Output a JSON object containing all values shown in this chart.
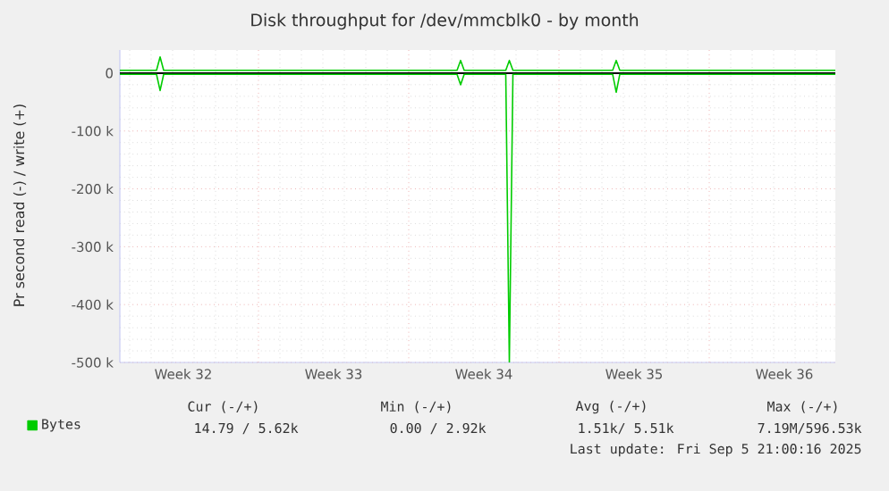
{
  "chart_data": {
    "type": "line",
    "title": "Disk throughput for /dev/mmcblk0 - by month",
    "ylabel": "Pr second read (-) / write (+)",
    "xlim": [
      "2025-08-03T13:00",
      "2025-09-05T21:00"
    ],
    "ylim": [
      -500000,
      40000
    ],
    "xticks": [
      {
        "value": "2025-08-06T12:00",
        "label": "Week 32"
      },
      {
        "value": "2025-08-10",
        "label": null
      },
      {
        "value": "2025-08-13T12:00",
        "label": "Week 33"
      },
      {
        "value": "2025-08-17",
        "label": null
      },
      {
        "value": "2025-08-20T12:00",
        "label": "Week 34"
      },
      {
        "value": "2025-08-24",
        "label": null
      },
      {
        "value": "2025-08-27T12:00",
        "label": "Week 35"
      },
      {
        "value": "2025-08-31",
        "label": null
      },
      {
        "value": "2025-09-03T12:00",
        "label": "Week 36"
      }
    ],
    "yticks": [
      {
        "value": -500000,
        "label": "-500 k"
      },
      {
        "value": -400000,
        "label": "-400 k"
      },
      {
        "value": -300000,
        "label": "-300 k"
      },
      {
        "value": -200000,
        "label": "-200 k"
      },
      {
        "value": -100000,
        "label": "-100 k"
      },
      0
    ],
    "series": [
      {
        "name": "Bytes",
        "color": "#00cc00",
        "x": [
          "2025-08-03T13:00",
          "2025-08-05T06:00",
          "2025-08-05T10:00",
          "2025-08-05T14:00",
          "2025-08-19T06:00",
          "2025-08-19T10:00",
          "2025-08-19T14:00",
          "2025-08-21T12:30",
          "2025-08-21T16:30",
          "2025-08-21T20:30",
          "2025-08-26T12:00",
          "2025-08-26T16:00",
          "2025-08-26T20:00",
          "2025-09-05T21:00"
        ],
        "values": [
          5000,
          5000,
          28000,
          5000,
          5000,
          22000,
          5000,
          5000,
          22000,
          5000,
          5000,
          22000,
          5000,
          5000
        ]
      },
      {
        "color": "#00cc00",
        "x": [
          "2025-08-03T13:00",
          "2025-08-05T06:00",
          "2025-08-05T10:00",
          "2025-08-05T14:00",
          "2025-08-19T06:00",
          "2025-08-19T10:00",
          "2025-08-19T14:00",
          "2025-08-21T12:30",
          "2025-08-21T16:30",
          "2025-08-21T20:30",
          "2025-08-26T12:00",
          "2025-08-26T16:00",
          "2025-08-26T20:00",
          "2025-09-05T21:00"
        ],
        "values": [
          -2000,
          -2000,
          -30000,
          -2000,
          -2000,
          -20000,
          -2000,
          -2000,
          -500000,
          -2000,
          -2000,
          -33000,
          -2000,
          -2000
        ]
      }
    ],
    "ref_lines": [
      {
        "axis": "y",
        "value": 0,
        "color": "#000000"
      }
    ],
    "grid": true,
    "legend": "bottom left",
    "annotations": [
      "Cur (-/+)",
      "Min (-/+)",
      "Avg (-/+)",
      "Max (-/+)",
      "14.79 /  5.62k",
      "0.00 /  2.92k",
      "1.51k/  5.51k",
      "7.19M/596.53k",
      "Last update: Fri Sep  5 21:00:16 2025"
    ]
  }
}
